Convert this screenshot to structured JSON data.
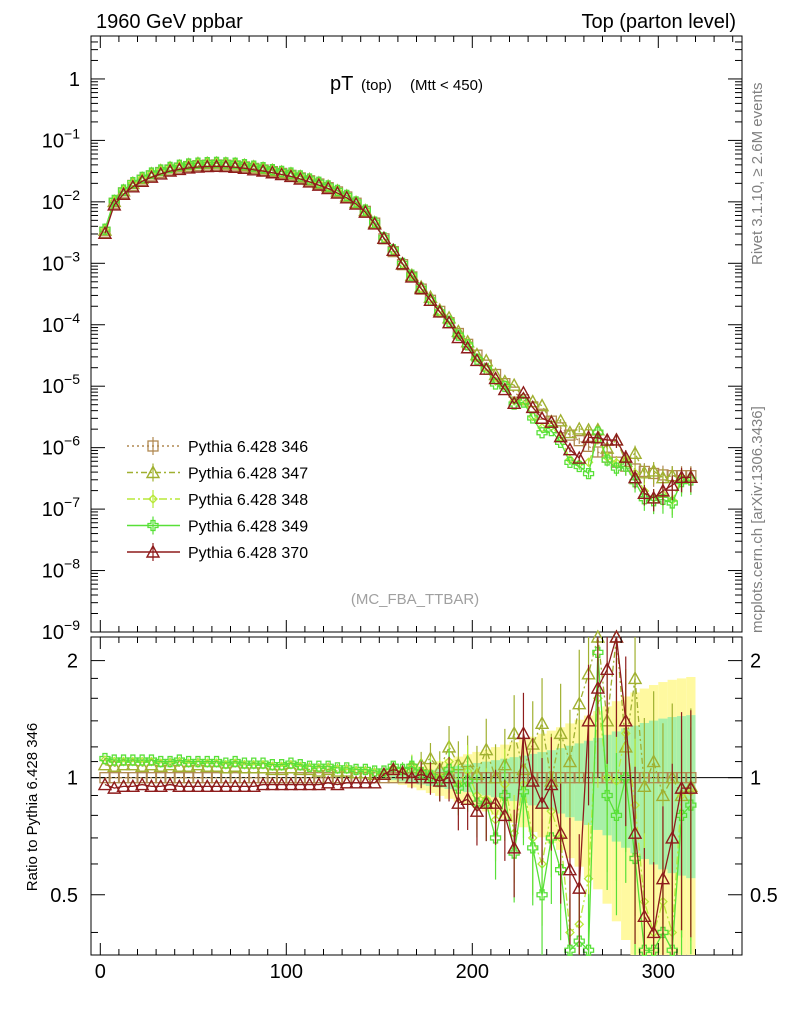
{
  "header": {
    "left": "1960 GeV ppbar",
    "right": "Top (parton level)"
  },
  "side_labels": {
    "rivet": "Rivet 3.1.10, ≥ 2.6M events",
    "mcplots": "mcplots.cern.ch [arXiv:1306.3436]"
  },
  "chart_data": {
    "type": "line",
    "title_main": "pT",
    "title_sub": "(top)",
    "title_cut": "(Mtt < 450)",
    "watermark": "(MC_FBA_TTBAR)",
    "xlim": [
      -5,
      345
    ],
    "xticks": [
      0,
      100,
      200,
      300
    ],
    "main_panel": {
      "yscale": "log",
      "ylim": [
        1e-09,
        5
      ],
      "ytick_labels": [
        "1",
        "10^-1",
        "10^-2",
        "10^-3",
        "10^-4",
        "10^-5",
        "10^-6",
        "10^-7",
        "10^-8",
        "10^-9"
      ],
      "ytick_values": [
        1,
        0.1,
        0.01,
        0.001,
        0.0001,
        1e-05,
        1e-06,
        1e-07,
        1e-08,
        1e-09
      ]
    },
    "ratio_panel": {
      "ylabel": "Ratio to Pythia 6.428 346",
      "ylim": [
        0.35,
        2.3
      ],
      "ytick_labels": [
        "0.5",
        "1",
        "2"
      ],
      "ytick_values": [
        0.5,
        1,
        2
      ]
    },
    "legend": {
      "placement": "lower-left"
    },
    "x": [
      2.5,
      7.5,
      12.5,
      17.5,
      22.5,
      27.5,
      32.5,
      37.5,
      42.5,
      47.5,
      52.5,
      57.5,
      62.5,
      67.5,
      72.5,
      77.5,
      82.5,
      87.5,
      92.5,
      97.5,
      102.5,
      107.5,
      112.5,
      117.5,
      122.5,
      127.5,
      132.5,
      137.5,
      142.5,
      147.5,
      152.5,
      157.5,
      162.5,
      167.5,
      172.5,
      177.5,
      182.5,
      187.5,
      192.5,
      197.5,
      202.5,
      207.5,
      212.5,
      217.5,
      222.5,
      227.5,
      232.5,
      237.5,
      242.5,
      247.5,
      252.5,
      257.5,
      262.5,
      267.5,
      272.5,
      277.5,
      282.5,
      287.5,
      292.5,
      297.5,
      302.5,
      307.5,
      312.5,
      317.5
    ],
    "ref_values": [
      0.0032,
      0.0095,
      0.014,
      0.0185,
      0.0225,
      0.0265,
      0.03,
      0.033,
      0.0355,
      0.0375,
      0.0388,
      0.0395,
      0.0398,
      0.0395,
      0.0385,
      0.037,
      0.035,
      0.033,
      0.031,
      0.029,
      0.027,
      0.0245,
      0.022,
      0.0195,
      0.017,
      0.0145,
      0.012,
      0.0095,
      0.007,
      0.0045,
      0.0025,
      0.00155,
      0.00095,
      0.0006,
      0.00038,
      0.00025,
      0.000165,
      0.000108,
      7.2e-05,
      4.8e-05,
      3.2e-05,
      2.2e-05,
      1.55e-05,
      1.1e-05,
      8e-06,
      6e-06,
      4.6e-06,
      3.5e-06,
      2.7e-06,
      2.1e-06,
      1.6e-06,
      1.3e-06,
      1.05e-06,
      8.5e-07,
      7e-07,
      5.8e-07,
      5e-07,
      4.5e-07,
      4.1e-07,
      3.8e-07,
      3.6e-07,
      3.5e-07,
      3.5e-07,
      3.5e-07
    ],
    "series": [
      {
        "name": "Pythia 6.428 346",
        "color": "#b08850",
        "marker": "square",
        "dash": "2,3",
        "ratio": [
          1.0,
          1.0,
          1.0,
          1.0,
          1.0,
          1.0,
          1.0,
          1.0,
          1.0,
          1.0,
          1.0,
          1.0,
          1.0,
          1.0,
          1.0,
          1.0,
          1.0,
          1.0,
          1.0,
          1.0,
          1.0,
          1.0,
          1.0,
          1.0,
          1.0,
          1.0,
          1.0,
          1.0,
          1.0,
          1.0,
          1.0,
          1.0,
          1.0,
          1.0,
          1.0,
          1.0,
          1.0,
          1.0,
          1.0,
          1.0,
          1.0,
          1.0,
          1.0,
          1.0,
          1.0,
          1.0,
          1.0,
          1.0,
          1.0,
          1.0,
          1.0,
          1.0,
          1.0,
          1.0,
          1.0,
          1.0,
          1.0,
          1.0,
          1.0,
          1.0,
          1.0,
          1.0,
          1.0,
          1.0
        ]
      },
      {
        "name": "Pythia 6.428 347",
        "color": "#a0b030",
        "marker": "triangle",
        "dash": "6,3,2,3",
        "ratio": [
          1.08,
          1.07,
          1.08,
          1.08,
          1.07,
          1.08,
          1.07,
          1.08,
          1.07,
          1.07,
          1.08,
          1.07,
          1.07,
          1.06,
          1.07,
          1.06,
          1.06,
          1.06,
          1.05,
          1.05,
          1.06,
          1.05,
          1.05,
          1.04,
          1.05,
          1.04,
          1.04,
          1.03,
          1.03,
          1.02,
          1.02,
          1.05,
          1.03,
          1.06,
          1.08,
          1.12,
          1.05,
          1.2,
          1.08,
          1.1,
          1.02,
          1.18,
          1.0,
          1.08,
          1.3,
          1.05,
          1.22,
          1.38,
          0.98,
          1.3,
          1.1,
          1.55,
          1.85,
          2.3,
          1.4,
          2.3,
          1.2,
          1.8,
          0.95,
          1.1,
          0.9,
          1.0,
          0.9,
          0.95
        ]
      },
      {
        "name": "Pythia 6.428 348",
        "color": "#b8e838",
        "marker": "diamond",
        "dash": "8,3,2,3",
        "ratio": [
          1.11,
          1.1,
          1.1,
          1.1,
          1.1,
          1.1,
          1.09,
          1.09,
          1.1,
          1.09,
          1.09,
          1.09,
          1.09,
          1.08,
          1.09,
          1.08,
          1.08,
          1.08,
          1.07,
          1.07,
          1.08,
          1.07,
          1.06,
          1.06,
          1.06,
          1.05,
          1.05,
          1.04,
          1.04,
          1.03,
          1.03,
          1.06,
          1.04,
          1.08,
          1.04,
          1.03,
          1.0,
          1.1,
          0.96,
          1.04,
          0.9,
          0.88,
          0.78,
          0.96,
          0.72,
          0.96,
          0.7,
          0.6,
          0.82,
          0.7,
          0.4,
          0.42,
          0.55,
          1.6,
          1.0,
          0.98,
          1.3,
          0.85,
          0.48,
          0.4,
          0.48,
          0.4,
          0.9,
          0.92
        ]
      },
      {
        "name": "Pythia 6.428 349",
        "color": "#58e038",
        "marker": "cross",
        "dash": "",
        "ratio": [
          1.12,
          1.11,
          1.11,
          1.11,
          1.11,
          1.11,
          1.1,
          1.1,
          1.11,
          1.1,
          1.1,
          1.1,
          1.1,
          1.09,
          1.1,
          1.09,
          1.09,
          1.09,
          1.08,
          1.08,
          1.09,
          1.08,
          1.07,
          1.07,
          1.07,
          1.06,
          1.06,
          1.05,
          1.05,
          1.04,
          1.04,
          1.07,
          1.05,
          1.07,
          1.03,
          1.01,
          0.98,
          1.05,
          0.94,
          0.98,
          0.86,
          0.86,
          0.7,
          0.9,
          0.64,
          0.92,
          0.66,
          0.5,
          0.7,
          0.58,
          0.36,
          0.38,
          0.36,
          2.1,
          0.9,
          0.8,
          1.0,
          0.62,
          0.36,
          0.36,
          0.4,
          0.36,
          0.8,
          0.85
        ]
      },
      {
        "name": "Pythia 6.428 370",
        "color": "#8e1c1c",
        "marker": "triangle",
        "dash": "",
        "ratio": [
          0.96,
          0.94,
          0.95,
          0.95,
          0.96,
          0.95,
          0.95,
          0.96,
          0.95,
          0.95,
          0.95,
          0.95,
          0.95,
          0.95,
          0.95,
          0.95,
          0.95,
          0.96,
          0.96,
          0.96,
          0.96,
          0.96,
          0.96,
          0.96,
          0.97,
          0.96,
          0.97,
          0.97,
          0.97,
          0.97,
          1.02,
          1.05,
          1.03,
          1.0,
          1.02,
          1.0,
          0.98,
          1.0,
          0.86,
          0.88,
          0.82,
          0.86,
          0.86,
          0.8,
          0.66,
          1.3,
          0.98,
          0.86,
          0.96,
          0.72,
          0.58,
          0.52,
          1.4,
          1.7,
          1.9,
          2.3,
          1.4,
          0.72,
          0.44,
          0.4,
          0.55,
          0.7,
          0.94,
          0.94
        ]
      }
    ]
  }
}
